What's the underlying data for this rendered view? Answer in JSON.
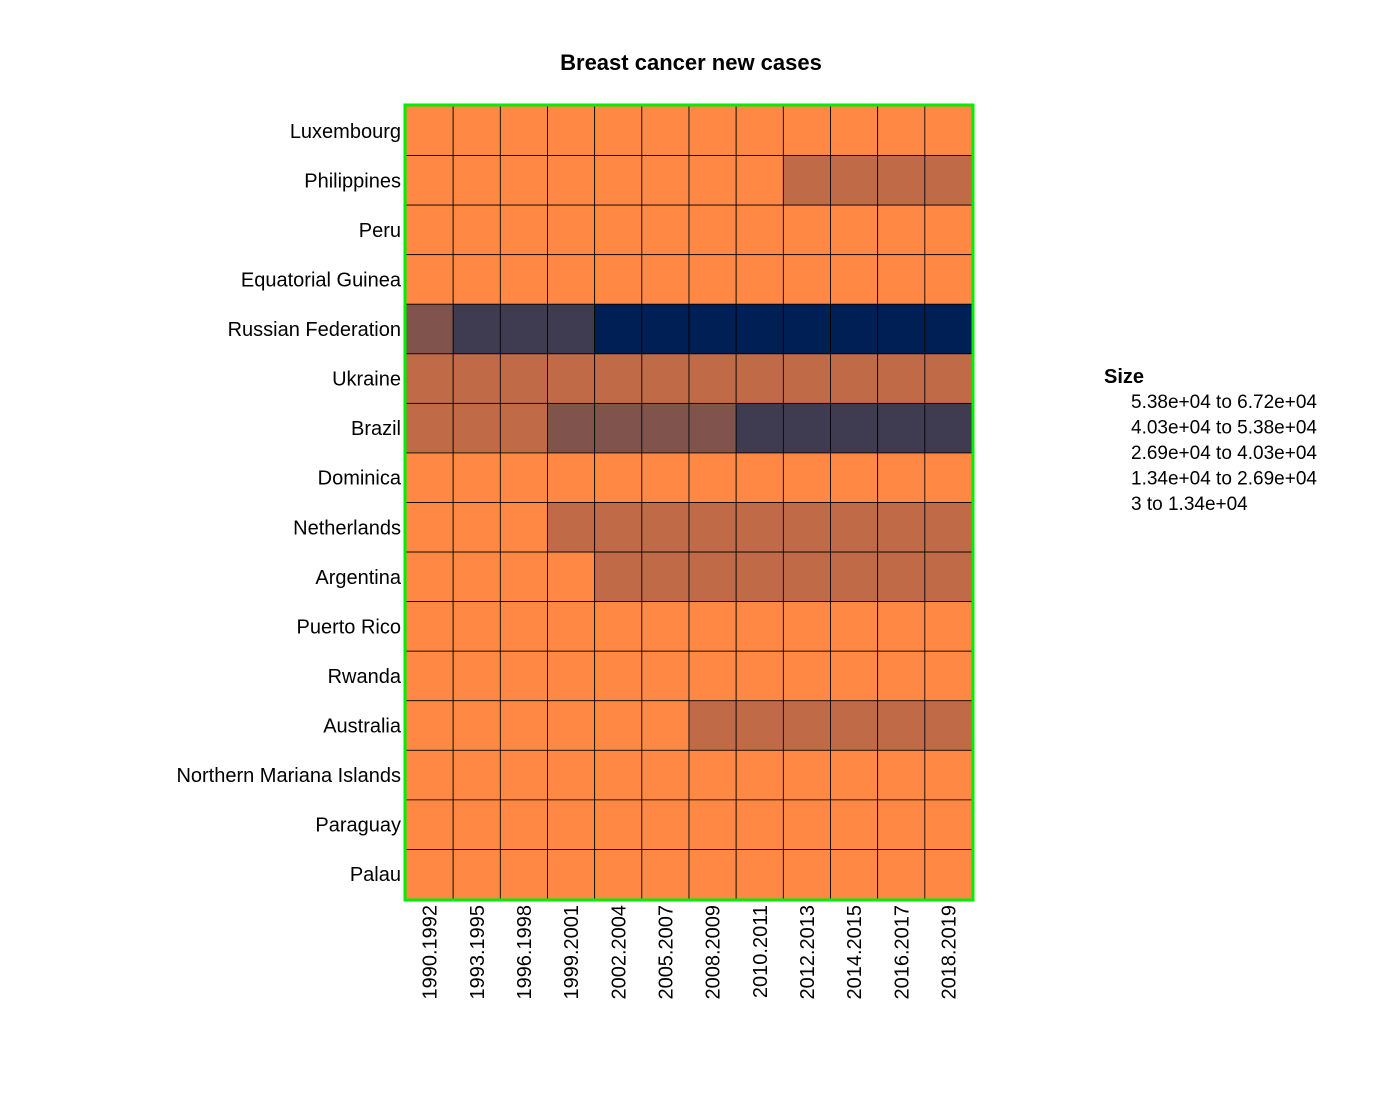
{
  "chart_data": {
    "type": "heatmap",
    "title": "Breast cancer new cases",
    "xlabel": "",
    "ylabel": "",
    "rows": [
      "Luxembourg",
      "Philippines",
      "Peru",
      "Equatorial Guinea",
      "Russian Federation",
      "Ukraine",
      "Brazil",
      "Dominica",
      "Netherlands",
      "Argentina",
      "Puerto Rico",
      "Rwanda",
      "Australia",
      "Northern Mariana Islands",
      "Paraguay",
      "Palau"
    ],
    "columns": [
      "1990.1992",
      "1993.1995",
      "1996.1998",
      "1999.2001",
      "2002.2004",
      "2005.2007",
      "2008.2009",
      "2010.2011",
      "2012.2013",
      "2014.2015",
      "2016.2017",
      "2018.2019"
    ],
    "bins": [
      {
        "label": "3  to  1.34e+04",
        "color": "#ff8844"
      },
      {
        "label": "1.34e+04  to  2.69e+04",
        "color": "#c06a48"
      },
      {
        "label": "2.69e+04  to  4.03e+04",
        "color": "#80544c"
      },
      {
        "label": "4.03e+04  to  5.38e+04",
        "color": "#3f3b50"
      },
      {
        "label": "5.38e+04  to  6.72e+04",
        "color": "#001f55"
      }
    ],
    "cell_bins": [
      [
        0,
        0,
        0,
        0,
        0,
        0,
        0,
        0,
        0,
        0,
        0,
        0
      ],
      [
        0,
        0,
        0,
        0,
        0,
        0,
        0,
        0,
        1,
        1,
        1,
        1
      ],
      [
        0,
        0,
        0,
        0,
        0,
        0,
        0,
        0,
        0,
        0,
        0,
        0
      ],
      [
        0,
        0,
        0,
        0,
        0,
        0,
        0,
        0,
        0,
        0,
        0,
        0
      ],
      [
        2,
        3,
        3,
        3,
        4,
        4,
        4,
        4,
        4,
        4,
        4,
        4
      ],
      [
        1,
        1,
        1,
        1,
        1,
        1,
        1,
        1,
        1,
        1,
        1,
        1
      ],
      [
        1,
        1,
        1,
        2,
        2,
        2,
        2,
        3,
        3,
        3,
        3,
        3
      ],
      [
        0,
        0,
        0,
        0,
        0,
        0,
        0,
        0,
        0,
        0,
        0,
        0
      ],
      [
        0,
        0,
        0,
        1,
        1,
        1,
        1,
        1,
        1,
        1,
        1,
        1
      ],
      [
        0,
        0,
        0,
        0,
        1,
        1,
        1,
        1,
        1,
        1,
        1,
        1
      ],
      [
        0,
        0,
        0,
        0,
        0,
        0,
        0,
        0,
        0,
        0,
        0,
        0
      ],
      [
        0,
        0,
        0,
        0,
        0,
        0,
        0,
        0,
        0,
        0,
        0,
        0
      ],
      [
        0,
        0,
        0,
        0,
        0,
        0,
        1,
        1,
        1,
        1,
        1,
        1
      ],
      [
        0,
        0,
        0,
        0,
        0,
        0,
        0,
        0,
        0,
        0,
        0,
        0
      ],
      [
        0,
        0,
        0,
        0,
        0,
        0,
        0,
        0,
        0,
        0,
        0,
        0
      ],
      [
        0,
        0,
        0,
        0,
        0,
        0,
        0,
        0,
        0,
        0,
        0,
        0
      ]
    ],
    "legend": {
      "title": "Size",
      "items": [
        "5.38e+04  to  6.72e+04",
        "4.03e+04  to  5.38e+04",
        "2.69e+04  to  4.03e+04",
        "1.34e+04  to  2.69e+04",
        "3  to  1.34e+04"
      ],
      "placement": "right"
    },
    "border_color": "#00ee00",
    "grid": true
  }
}
